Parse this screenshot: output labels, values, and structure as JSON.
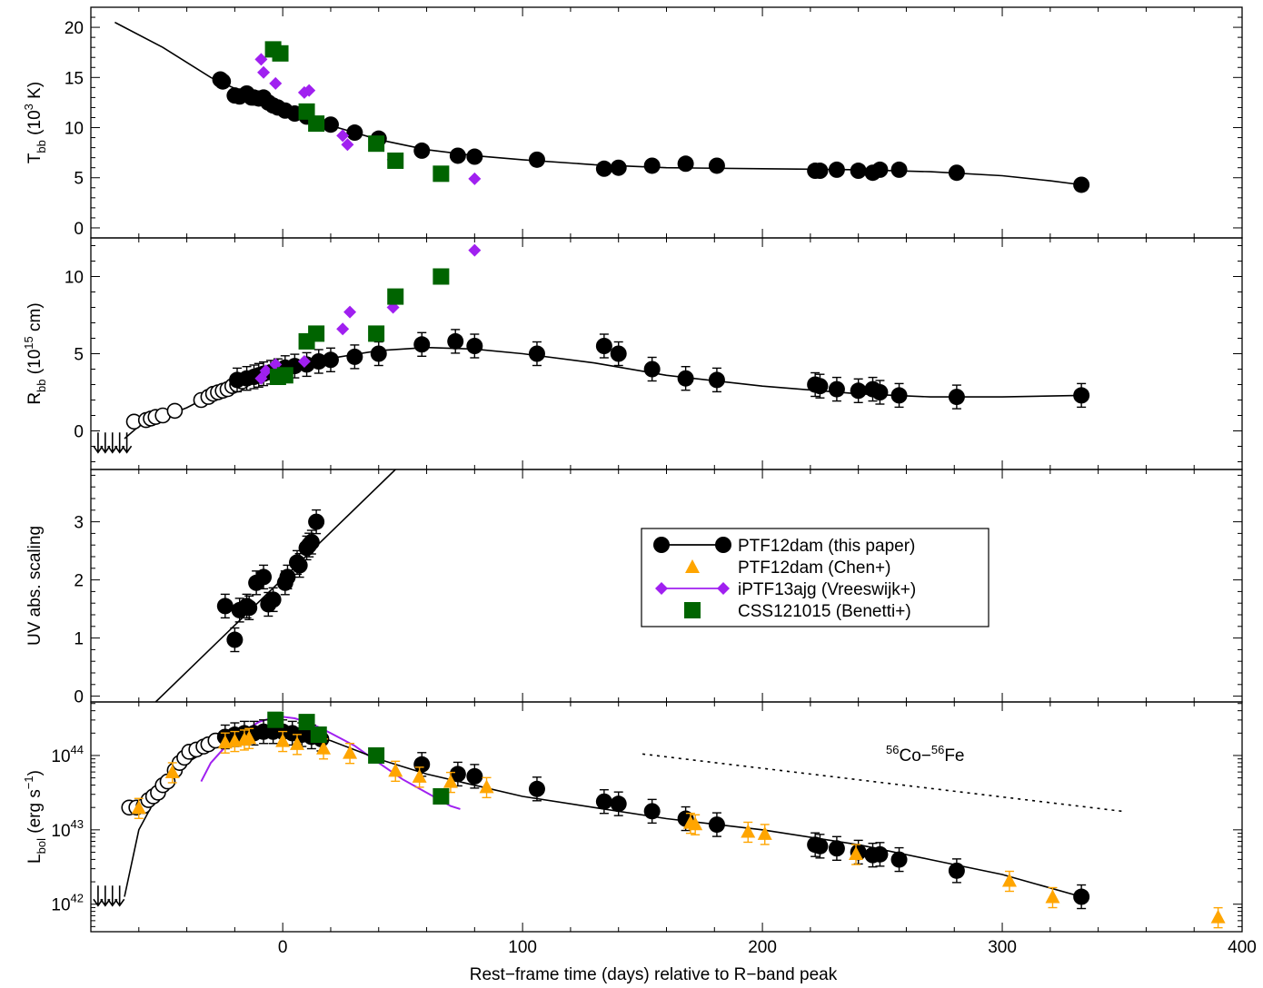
{
  "figure": {
    "xlabel": "Rest−frame time (days) relative to R−band peak",
    "xlim": [
      -80,
      400
    ],
    "xticks": [
      0,
      100,
      200,
      300,
      400
    ],
    "annotation": {
      "text_prefix_sup": "56",
      "text_a": "Co−",
      "text_b_sup": "56",
      "text_b": "Fe"
    }
  },
  "legend": {
    "entries": [
      {
        "label": "PTF12dam (this paper)",
        "color": "#000000",
        "marker": "circle",
        "line": true
      },
      {
        "label": "PTF12dam (Chen+)",
        "color": "#FFA500",
        "marker": "triangle",
        "line": false
      },
      {
        "label": "iPTF13ajg (Vreeswijk+)",
        "color": "#A020F0",
        "marker": "diamond",
        "line": true
      },
      {
        "label": "CSS121015 (Benetti+)",
        "color": "#006400",
        "marker": "square",
        "line": false
      }
    ]
  },
  "chart_data": [
    {
      "type": "scatter",
      "ylabel_main": "T",
      "ylabel_sub": "bb",
      "ylabel_rest_a": " (10",
      "ylabel_sup": "3",
      "ylabel_rest_b": " K)",
      "ylim": [
        -1,
        22
      ],
      "yticks": [
        0,
        5,
        10,
        15,
        20
      ],
      "model_line": {
        "x": [
          -70,
          -50,
          -30,
          -10,
          0,
          10,
          20,
          30,
          40,
          60,
          80,
          100,
          130,
          160,
          200,
          240,
          270,
          300,
          320,
          333
        ],
        "y": [
          20.5,
          18,
          15,
          12.8,
          11.8,
          10.9,
          10.2,
          9.5,
          8.8,
          7.8,
          7.2,
          6.8,
          6.3,
          6.0,
          5.9,
          5.8,
          5.6,
          5.2,
          4.7,
          4.3
        ]
      },
      "series": [
        {
          "name": "PTF12dam (this paper)",
          "color": "#000000",
          "marker": "circle",
          "x": [
            -26,
            -25,
            -20,
            -18,
            -15,
            -13,
            -12,
            -10,
            -8,
            -6,
            -4,
            -2,
            1,
            5,
            10,
            20,
            30,
            40,
            58,
            73,
            80,
            106,
            134,
            140,
            154,
            168,
            181,
            222,
            224,
            231,
            240,
            246,
            249,
            257,
            281,
            333
          ],
          "y": [
            14.8,
            14.6,
            13.2,
            13.1,
            13.4,
            13.0,
            13.0,
            12.9,
            13.0,
            12.5,
            12.2,
            12.0,
            11.7,
            11.4,
            11.1,
            10.3,
            9.5,
            8.9,
            7.7,
            7.2,
            7.1,
            6.8,
            5.9,
            6.0,
            6.2,
            6.4,
            6.2,
            5.7,
            5.7,
            5.8,
            5.7,
            5.5,
            5.8,
            5.8,
            5.5,
            4.3
          ]
        },
        {
          "name": "iPTF13ajg (Vreeswijk+)",
          "color": "#A020F0",
          "marker": "diamond",
          "x": [
            -9,
            -8,
            -3,
            9,
            11,
            25,
            27,
            46,
            80
          ],
          "y": [
            16.8,
            15.5,
            14.4,
            13.5,
            13.7,
            9.2,
            8.3,
            6.8,
            4.9
          ]
        },
        {
          "name": "CSS121015 (Benetti+)",
          "color": "#006400",
          "marker": "square",
          "x": [
            -4,
            -1,
            10,
            14,
            39,
            47,
            66
          ],
          "y": [
            17.8,
            17.4,
            11.6,
            10.4,
            8.4,
            6.7,
            5.4
          ]
        }
      ]
    },
    {
      "type": "scatter",
      "ylabel_main": "R",
      "ylabel_sub": "bb",
      "ylabel_rest_a": " (10",
      "ylabel_sup": "15",
      "ylabel_rest_b": " cm)",
      "ylim": [
        -2.5,
        12.5
      ],
      "yticks": [
        0,
        5,
        10
      ],
      "model_line": {
        "x": [
          -66,
          -60,
          -50,
          -40,
          -30,
          -20,
          -10,
          0,
          10,
          20,
          40,
          60,
          80,
          100,
          130,
          160,
          200,
          240,
          270,
          300,
          333
        ],
        "y": [
          -0.5,
          0.3,
          0.9,
          1.5,
          2.3,
          3.0,
          3.6,
          4.0,
          4.4,
          4.7,
          5.2,
          5.4,
          5.3,
          5.0,
          4.4,
          3.6,
          2.9,
          2.4,
          2.2,
          2.2,
          2.3
        ]
      },
      "limits": {
        "x": [
          -77,
          -74,
          -71,
          -68,
          -65
        ],
        "y": [
          -0.1,
          -0.1,
          -0.1,
          -0.1,
          -0.1
        ]
      },
      "series": [
        {
          "name": "PTF12dam early (open)",
          "color": "#000000",
          "marker": "open-circle",
          "x": [
            -62,
            -57,
            -55,
            -53,
            -50,
            -45,
            -34,
            -31,
            -29,
            -27,
            -25,
            -23,
            -21,
            -19,
            -17
          ],
          "y": [
            0.6,
            0.7,
            0.8,
            0.9,
            1.0,
            1.3,
            2.0,
            2.2,
            2.4,
            2.5,
            2.6,
            2.7,
            2.9,
            3.0,
            3.2
          ]
        },
        {
          "name": "PTF12dam (this paper)",
          "color": "#000000",
          "marker": "circle",
          "x": [
            -19,
            -15,
            -12,
            -10,
            -8,
            -5,
            -2,
            1,
            5,
            10,
            15,
            20,
            30,
            40,
            58,
            72,
            80,
            106,
            134,
            140,
            154,
            168,
            181,
            222,
            224,
            231,
            240,
            246,
            249,
            257,
            281,
            333
          ],
          "y": [
            3.3,
            3.4,
            3.5,
            3.6,
            3.7,
            3.8,
            3.9,
            4.1,
            4.2,
            4.3,
            4.5,
            4.6,
            4.8,
            5.0,
            5.6,
            5.8,
            5.5,
            5.0,
            5.5,
            5.0,
            4.0,
            3.4,
            3.3,
            3.0,
            2.9,
            2.7,
            2.6,
            2.7,
            2.5,
            2.3,
            2.2,
            2.3
          ]
        },
        {
          "name": "iPTF13ajg (Vreeswijk+)",
          "color": "#A020F0",
          "marker": "diamond",
          "x": [
            -9,
            -7,
            -3,
            9,
            25,
            28,
            46,
            80
          ],
          "y": [
            3.4,
            3.9,
            4.3,
            4.5,
            6.6,
            7.7,
            8.0,
            11.7
          ]
        },
        {
          "name": "CSS121015 (Benetti+)",
          "color": "#006400",
          "marker": "square",
          "x": [
            -2,
            1,
            10,
            14,
            39,
            47,
            66
          ],
          "y": [
            3.5,
            3.6,
            5.8,
            6.3,
            6.3,
            8.7,
            10.0
          ]
        }
      ]
    },
    {
      "type": "scatter",
      "ylabel": "UV abs. scaling",
      "ylim": [
        -0.1,
        3.9
      ],
      "yticks": [
        0,
        1,
        2,
        3
      ],
      "model_line": {
        "x": [
          -53,
          47
        ],
        "y": [
          -0.1,
          3.9
        ]
      },
      "series": [
        {
          "name": "PTF12dam (this paper)",
          "color": "#000000",
          "marker": "circle",
          "x": [
            -24,
            -20,
            -18,
            -15,
            -14,
            -11,
            -8,
            -6,
            -4,
            1,
            2,
            6,
            7,
            10,
            11,
            12,
            14
          ],
          "y": [
            1.55,
            0.97,
            1.48,
            1.55,
            1.52,
            1.95,
            2.05,
            1.58,
            1.66,
            1.95,
            2.05,
            2.3,
            2.25,
            2.55,
            2.6,
            2.65,
            3.0
          ]
        }
      ]
    },
    {
      "type": "scatter",
      "ylabel_main": "L",
      "ylabel_sub": "bol",
      "ylabel_rest_a": " (erg s",
      "ylabel_sup": "−1",
      "ylabel_rest_b": ")",
      "ylim_log10": [
        41.63,
        44.72
      ],
      "yticks_log10": [
        42,
        43,
        44
      ],
      "model_line": {
        "x": [
          -66,
          -60,
          -55,
          -50,
          -45,
          -40,
          -30,
          -20,
          -10,
          0,
          10,
          20,
          40,
          60,
          80,
          100,
          130,
          160,
          200,
          240,
          270,
          300,
          333
        ],
        "y_log10": [
          42.1,
          43.0,
          43.3,
          43.55,
          43.75,
          43.9,
          44.1,
          44.25,
          44.32,
          44.33,
          44.28,
          44.2,
          43.95,
          43.75,
          43.6,
          43.45,
          43.3,
          43.15,
          43.0,
          42.8,
          42.6,
          42.4,
          42.1
        ]
      },
      "purple_line": {
        "x": [
          -34,
          -30,
          -25,
          -20,
          -15,
          -10,
          -5,
          0,
          5,
          10,
          15,
          20,
          30,
          40,
          50,
          60,
          70,
          74
        ],
        "y_log10": [
          43.65,
          43.9,
          44.08,
          44.22,
          44.35,
          44.45,
          44.5,
          44.52,
          44.5,
          44.45,
          44.38,
          44.3,
          44.13,
          43.9,
          43.68,
          43.5,
          43.32,
          43.28
        ]
      },
      "dotted_line": {
        "x": [
          150,
          350
        ],
        "y_log10": [
          44.02,
          43.25
        ]
      },
      "limits": {
        "x": [
          -77,
          -74,
          -71,
          -68
        ],
        "y_log10": [
          42.25,
          42.25,
          42.25,
          42.25
        ]
      },
      "series": [
        {
          "name": "PTF12dam early (open)",
          "color": "#000000",
          "marker": "open-circle",
          "x": [
            -64,
            -61,
            -58,
            -56,
            -54,
            -52,
            -50,
            -48,
            -45,
            -43,
            -41,
            -39,
            -36,
            -33,
            -31,
            -28
          ],
          "y_log10": [
            43.3,
            43.3,
            43.32,
            43.4,
            43.45,
            43.5,
            43.6,
            43.65,
            43.8,
            43.9,
            43.97,
            44.05,
            44.08,
            44.12,
            44.15,
            44.2
          ]
        },
        {
          "name": "PTF12dam (this paper)",
          "color": "#000000",
          "marker": "circle",
          "x": [
            -24,
            -20,
            -16,
            -12,
            -8,
            -4,
            0,
            4,
            8,
            12,
            16,
            58,
            73,
            80,
            106,
            134,
            140,
            154,
            168,
            181,
            222,
            224,
            231,
            240,
            246,
            249,
            257,
            281,
            333
          ],
          "y_log10": [
            44.25,
            44.28,
            44.3,
            44.3,
            44.32,
            44.32,
            44.32,
            44.3,
            44.28,
            44.25,
            44.22,
            43.88,
            43.75,
            43.72,
            43.55,
            43.38,
            43.35,
            43.25,
            43.15,
            43.07,
            42.8,
            42.78,
            42.75,
            42.7,
            42.66,
            42.67,
            42.6,
            42.45,
            42.1
          ]
        },
        {
          "name": "PTF12dam (Chen+)",
          "color": "#FFA500",
          "marker": "triangle",
          "x": [
            -60,
            -46,
            -24,
            -20,
            -16,
            -14,
            0,
            6,
            17,
            28,
            47,
            57,
            70,
            85,
            170,
            172,
            194,
            201,
            239,
            303,
            321,
            390
          ],
          "y_log10": [
            43.3,
            43.78,
            44.18,
            44.2,
            44.22,
            44.24,
            44.2,
            44.16,
            44.1,
            44.04,
            43.8,
            43.72,
            43.65,
            43.58,
            43.1,
            43.08,
            42.98,
            42.95,
            42.68,
            42.32,
            42.1,
            41.83
          ]
        },
        {
          "name": "CSS121015 (Benetti+)",
          "color": "#006400",
          "marker": "square",
          "x": [
            -3,
            10,
            15,
            39,
            66
          ],
          "y_log10": [
            44.48,
            44.45,
            44.28,
            44.0,
            43.45
          ]
        }
      ]
    }
  ]
}
